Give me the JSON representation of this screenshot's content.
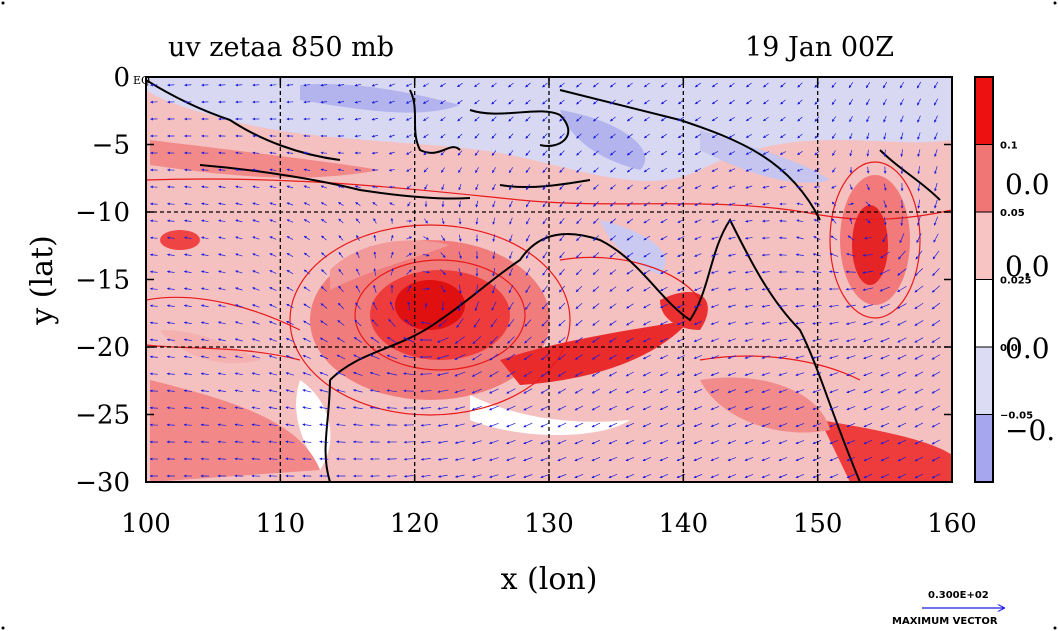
{
  "chart_data": {
    "type": "heatmap",
    "title": "uv zetaa 850 mb",
    "time_label": "19 Jan 00Z",
    "xlabel": "x (lon)",
    "ylabel": "y (lat)",
    "xlim": [
      100,
      160
    ],
    "ylim": [
      -30,
      0
    ],
    "x_ticks": [
      100,
      110,
      120,
      130,
      140,
      150,
      160
    ],
    "x_tick_labels": [
      "100",
      "110",
      "120",
      "130",
      "140",
      "150",
      "160"
    ],
    "y_ticks": [
      0,
      -5,
      -10,
      -15,
      -20,
      -25,
      -30
    ],
    "y_tick_labels": [
      "0",
      "−5",
      "−10",
      "−15",
      "−20",
      "−25",
      "−30"
    ],
    "equator_label": "EQ",
    "grid": true,
    "colorbar": {
      "position": "right",
      "levels": [
        {
          "label": "0.1",
          "color": "#ee1111"
        },
        {
          "label": "0.05",
          "color": "#f07575"
        },
        {
          "label": "0.025",
          "color": "#f7c3c3"
        },
        {
          "label": "0.0",
          "color": "#ffffff"
        },
        {
          "label": "−0.05",
          "color": "#dcdcf5"
        },
        {
          "label": "",
          "color": "#a6a6ee"
        }
      ],
      "overflow_labels": [
        "0.0",
        "0.0",
        "0.0",
        "−0."
      ]
    },
    "vector_color": "#1a1adf",
    "contour_color": "#e81a1a",
    "coast_color": "#000000",
    "max_vector": {
      "value": "0.300E+02",
      "label": "MAXIMUM VECTOR"
    }
  }
}
